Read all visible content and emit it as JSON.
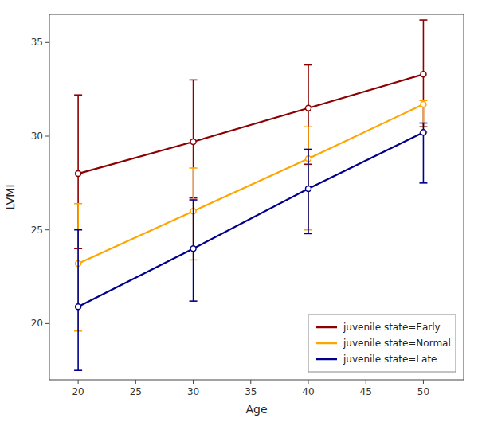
{
  "chart_data": {
    "type": "line",
    "xlabel": "Age",
    "ylabel": "LVMI",
    "x": [
      20,
      30,
      40,
      50
    ],
    "series": [
      {
        "name": "juvenile state=Early",
        "color": "#8B0000",
        "marker": "circle",
        "line_style": "solid",
        "values": [
          28.0,
          29.7,
          31.5,
          33.3
        ],
        "lower": [
          24.0,
          26.7,
          28.5,
          30.5
        ],
        "upper": [
          32.2,
          33.0,
          33.8,
          36.2
        ]
      },
      {
        "name": "juvenile state=Normal",
        "color": "#FFA500",
        "marker": "circle",
        "line_style": "solid",
        "values": [
          23.2,
          26.0,
          28.8,
          31.7
        ],
        "lower": [
          19.6,
          23.4,
          25.0,
          30.2
        ],
        "upper": [
          26.4,
          28.3,
          30.5,
          31.9
        ]
      },
      {
        "name": "juvenile state=Late",
        "color": "#00008B",
        "marker": "circle",
        "line_style": "solid",
        "values": [
          20.9,
          24.0,
          27.2,
          30.2
        ],
        "lower": [
          17.5,
          21.2,
          24.8,
          27.5
        ],
        "upper": [
          25.0,
          26.6,
          29.3,
          30.7
        ]
      }
    ],
    "xlim": [
      17.5,
      53.5
    ],
    "ylim": [
      17.0,
      36.5
    ],
    "xticks": [
      20,
      25,
      30,
      35,
      40,
      45,
      50
    ],
    "yticks": [
      20,
      25,
      30,
      35
    ],
    "grid": false,
    "legend": "lower right"
  }
}
